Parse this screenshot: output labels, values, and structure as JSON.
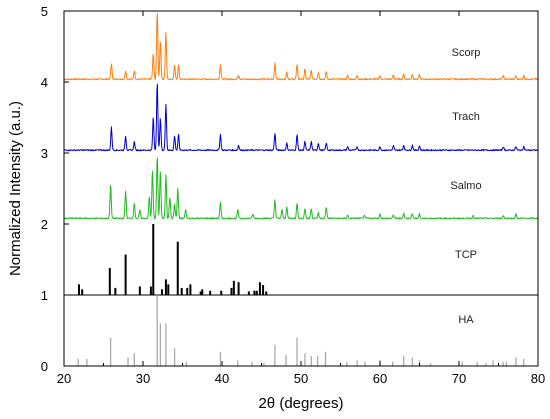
{
  "chart_data": {
    "type": "line",
    "xlabel": "2θ (degrees)",
    "ylabel": "Normalized Intensity (a.u.)",
    "xlim": [
      20,
      80
    ],
    "ylim": [
      0,
      5
    ],
    "x_ticks": [
      20,
      30,
      40,
      50,
      60,
      70,
      80
    ],
    "y_ticks": [
      0,
      1,
      2,
      3,
      4,
      5
    ],
    "grid": false,
    "series": [
      {
        "name": "Scorp",
        "kind": "pattern",
        "color": "#ff7f0e",
        "baseline": 4.04,
        "peaks": [
          [
            26.0,
            0.22
          ],
          [
            27.8,
            0.12
          ],
          [
            28.9,
            0.12
          ],
          [
            31.3,
            0.36
          ],
          [
            31.8,
            0.96
          ],
          [
            32.2,
            0.55
          ],
          [
            32.9,
            0.66
          ],
          [
            34.0,
            0.2
          ],
          [
            34.5,
            0.2
          ],
          [
            39.8,
            0.21
          ],
          [
            42.1,
            0.06
          ],
          [
            46.7,
            0.22
          ],
          [
            48.2,
            0.1
          ],
          [
            49.5,
            0.2
          ],
          [
            50.5,
            0.14
          ],
          [
            51.3,
            0.12
          ],
          [
            52.2,
            0.1
          ],
          [
            53.2,
            0.1
          ],
          [
            55.9,
            0.05
          ],
          [
            57.1,
            0.05
          ],
          [
            60.0,
            0.05
          ],
          [
            61.7,
            0.06
          ],
          [
            63.0,
            0.07
          ],
          [
            64.1,
            0.07
          ],
          [
            65.0,
            0.06
          ],
          [
            75.6,
            0.05
          ],
          [
            77.2,
            0.05
          ],
          [
            78.2,
            0.05
          ]
        ]
      },
      {
        "name": "Trach",
        "kind": "pattern",
        "color": "#0000cc",
        "baseline": 3.04,
        "peaks": [
          [
            26.0,
            0.32
          ],
          [
            27.8,
            0.2
          ],
          [
            28.9,
            0.12
          ],
          [
            31.3,
            0.46
          ],
          [
            31.8,
            0.96
          ],
          [
            32.2,
            0.45
          ],
          [
            32.9,
            0.65
          ],
          [
            34.0,
            0.2
          ],
          [
            34.5,
            0.22
          ],
          [
            39.8,
            0.22
          ],
          [
            42.1,
            0.07
          ],
          [
            46.7,
            0.24
          ],
          [
            48.2,
            0.1
          ],
          [
            49.5,
            0.22
          ],
          [
            50.5,
            0.12
          ],
          [
            51.3,
            0.12
          ],
          [
            52.2,
            0.1
          ],
          [
            53.2,
            0.1
          ],
          [
            55.9,
            0.05
          ],
          [
            57.1,
            0.05
          ],
          [
            60.0,
            0.05
          ],
          [
            61.7,
            0.06
          ],
          [
            63.0,
            0.07
          ],
          [
            64.1,
            0.07
          ],
          [
            65.0,
            0.06
          ],
          [
            75.6,
            0.05
          ],
          [
            77.2,
            0.05
          ],
          [
            78.2,
            0.05
          ]
        ]
      },
      {
        "name": "Salmo",
        "kind": "pattern",
        "color": "#22bb22",
        "baseline": 2.08,
        "peaks": [
          [
            25.9,
            0.48
          ],
          [
            27.8,
            0.38
          ],
          [
            28.9,
            0.22
          ],
          [
            29.6,
            0.12
          ],
          [
            30.8,
            0.3
          ],
          [
            31.2,
            0.68
          ],
          [
            31.8,
            0.88
          ],
          [
            32.2,
            0.68
          ],
          [
            32.9,
            0.62
          ],
          [
            33.4,
            0.3
          ],
          [
            34.0,
            0.2
          ],
          [
            34.4,
            0.42
          ],
          [
            35.4,
            0.12
          ],
          [
            39.8,
            0.22
          ],
          [
            42.0,
            0.12
          ],
          [
            43.9,
            0.06
          ],
          [
            46.7,
            0.26
          ],
          [
            47.6,
            0.12
          ],
          [
            48.2,
            0.16
          ],
          [
            49.5,
            0.22
          ],
          [
            50.5,
            0.14
          ],
          [
            51.3,
            0.14
          ],
          [
            52.2,
            0.08
          ],
          [
            53.2,
            0.16
          ],
          [
            55.9,
            0.05
          ],
          [
            58.0,
            0.04
          ],
          [
            60.0,
            0.06
          ],
          [
            61.7,
            0.05
          ],
          [
            63.0,
            0.07
          ],
          [
            64.1,
            0.07
          ],
          [
            65.0,
            0.06
          ],
          [
            71.8,
            0.04
          ],
          [
            75.6,
            0.04
          ],
          [
            77.2,
            0.06
          ]
        ]
      },
      {
        "name": "TCP",
        "kind": "sticks",
        "color": "#000000",
        "baseline": 1.0,
        "peaks": [
          [
            21.9,
            0.15
          ],
          [
            22.3,
            0.08
          ],
          [
            25.8,
            0.38
          ],
          [
            26.5,
            0.1
          ],
          [
            27.8,
            0.57
          ],
          [
            29.6,
            0.12
          ],
          [
            31.0,
            0.12
          ],
          [
            31.3,
            1.0
          ],
          [
            32.4,
            0.08
          ],
          [
            32.9,
            0.22
          ],
          [
            33.2,
            0.15
          ],
          [
            34.4,
            0.75
          ],
          [
            34.9,
            0.1
          ],
          [
            35.6,
            0.1
          ],
          [
            36.0,
            0.15
          ],
          [
            37.3,
            0.05
          ],
          [
            37.5,
            0.08
          ],
          [
            38.5,
            0.06
          ],
          [
            39.9,
            0.06
          ],
          [
            41.2,
            0.1
          ],
          [
            41.5,
            0.2
          ],
          [
            42.1,
            0.18
          ],
          [
            43.4,
            0.05
          ],
          [
            44.1,
            0.06
          ],
          [
            44.4,
            0.06
          ],
          [
            44.8,
            0.18
          ],
          [
            45.2,
            0.14
          ],
          [
            45.6,
            0.05
          ]
        ]
      },
      {
        "name": "HA",
        "kind": "sticks",
        "color": "#aaaaaa",
        "baseline": 0.0,
        "peaks": [
          [
            21.8,
            0.1
          ],
          [
            22.9,
            0.1
          ],
          [
            25.9,
            0.4
          ],
          [
            28.1,
            0.12
          ],
          [
            28.9,
            0.18
          ],
          [
            31.8,
            1.0
          ],
          [
            32.2,
            0.6
          ],
          [
            32.9,
            0.6
          ],
          [
            34.0,
            0.25
          ],
          [
            35.5,
            0.06
          ],
          [
            39.8,
            0.2
          ],
          [
            42.0,
            0.08
          ],
          [
            43.8,
            0.06
          ],
          [
            45.3,
            0.04
          ],
          [
            46.7,
            0.3
          ],
          [
            48.1,
            0.16
          ],
          [
            49.5,
            0.4
          ],
          [
            50.5,
            0.18
          ],
          [
            51.3,
            0.14
          ],
          [
            52.1,
            0.14
          ],
          [
            53.1,
            0.2
          ],
          [
            55.8,
            0.06
          ],
          [
            57.1,
            0.08
          ],
          [
            58.1,
            0.06
          ],
          [
            60.0,
            0.08
          ],
          [
            61.6,
            0.06
          ],
          [
            63.0,
            0.14
          ],
          [
            64.1,
            0.12
          ],
          [
            65.0,
            0.08
          ],
          [
            66.4,
            0.04
          ],
          [
            70.4,
            0.06
          ],
          [
            72.3,
            0.06
          ],
          [
            73.4,
            0.04
          ],
          [
            74.3,
            0.08
          ],
          [
            75.6,
            0.06
          ],
          [
            76.0,
            0.06
          ],
          [
            77.2,
            0.12
          ],
          [
            78.2,
            0.1
          ]
        ]
      }
    ]
  }
}
